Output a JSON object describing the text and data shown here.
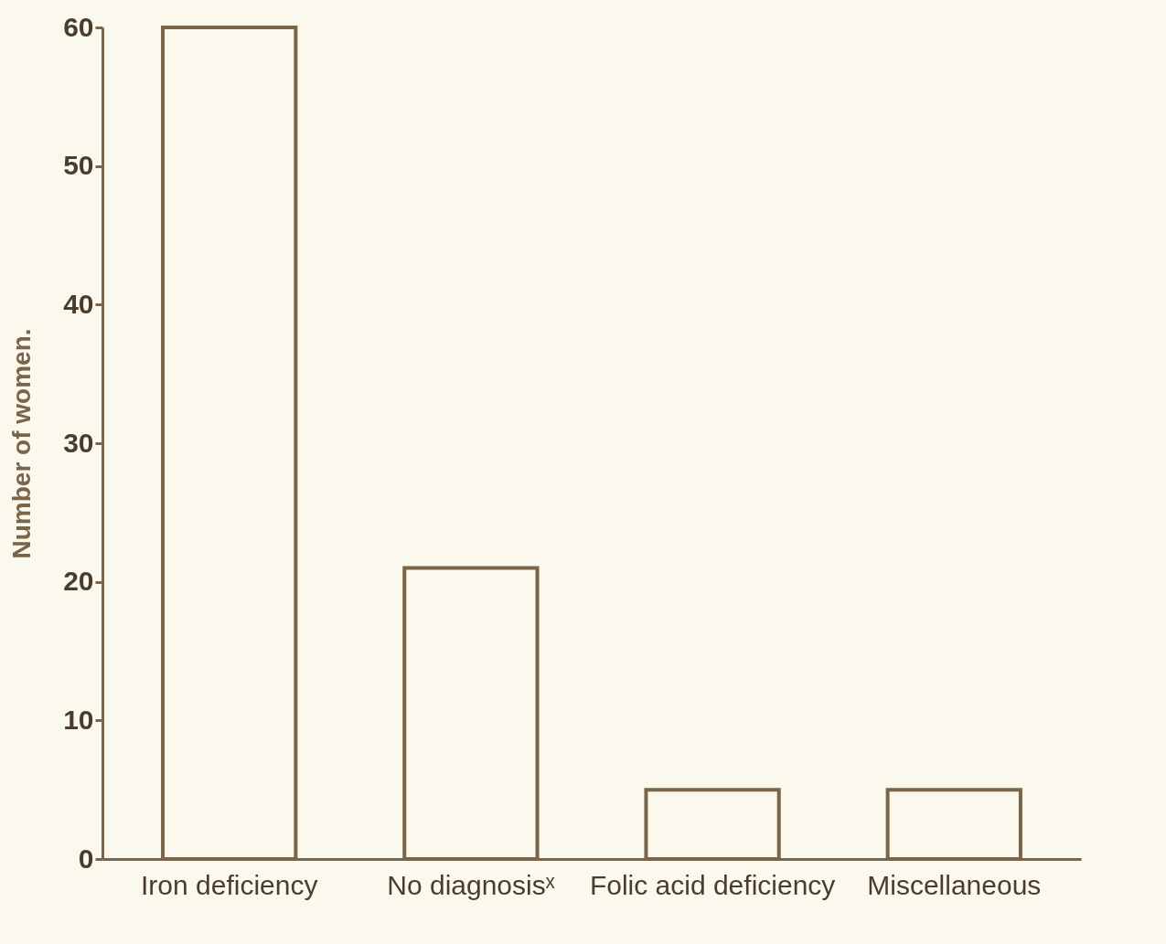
{
  "chart_data": {
    "type": "bar",
    "ylabel": "Number of women.",
    "categories": [
      "Iron deficiency",
      "No diagnosisˣ",
      "Folic acid deficiency",
      "Miscellaneous"
    ],
    "values": [
      60,
      21,
      5,
      5
    ],
    "color": "#7a6548",
    "ylim": [
      0,
      60
    ],
    "yticks": [
      0,
      10,
      20,
      30,
      40,
      50,
      60
    ],
    "grid": false
  }
}
